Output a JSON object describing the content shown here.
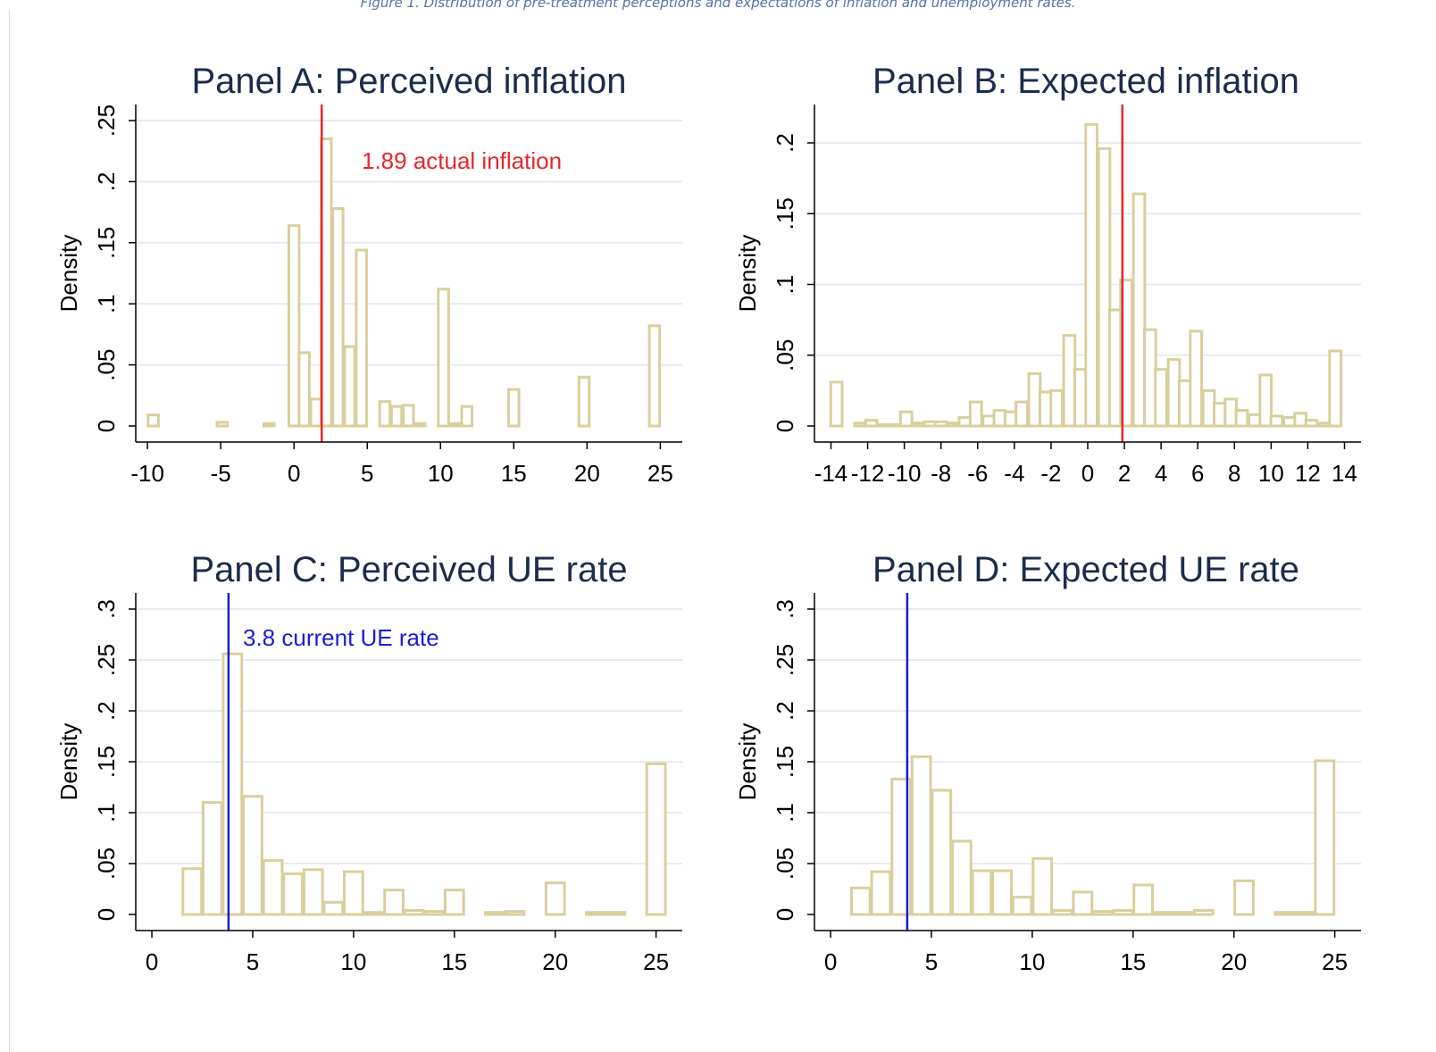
{
  "caption": "Figure 1. Distribution of pre-treatment perceptions and expectations of inflation and unemployment rates.",
  "colors": {
    "bar_outline": "#d9cf9c",
    "grid": "#e4ecee",
    "title": "#1c2c4c",
    "inflation_line": "#e8262a",
    "ue_line": "#1b1bd6"
  },
  "chart_data": [
    {
      "type": "bar",
      "title": "Panel A: Perceived inflation",
      "ylabel": "Density",
      "xlim": [
        -10.8,
        26.5
      ],
      "ylim": [
        0,
        0.25
      ],
      "xticks": [
        -10,
        -5,
        0,
        5,
        10,
        15,
        20,
        25
      ],
      "xtick_labels": [
        "-10",
        "-5",
        "0",
        "5",
        "10",
        "15",
        "20",
        "25"
      ],
      "yticks": [
        0,
        0.05,
        0.1,
        0.15,
        0.2,
        0.25
      ],
      "ytick_labels": [
        "0",
        ".05",
        ".1",
        ".15",
        ".2",
        ".25"
      ],
      "bin_width": 0.7,
      "bins": [
        {
          "x": -9.6,
          "y": 0.009
        },
        {
          "x": -4.9,
          "y": 0.003
        },
        {
          "x": -1.7,
          "y": 0.002
        },
        {
          "x": -0.0,
          "y": 0.164
        },
        {
          "x": 0.7,
          "y": 0.06
        },
        {
          "x": 1.5,
          "y": 0.022
        },
        {
          "x": 2.2,
          "y": 0.235
        },
        {
          "x": 3.0,
          "y": 0.178
        },
        {
          "x": 3.8,
          "y": 0.065
        },
        {
          "x": 4.6,
          "y": 0.144
        },
        {
          "x": 6.2,
          "y": 0.02
        },
        {
          "x": 7.0,
          "y": 0.016
        },
        {
          "x": 7.8,
          "y": 0.017
        },
        {
          "x": 8.6,
          "y": 0.002
        },
        {
          "x": 10.2,
          "y": 0.112
        },
        {
          "x": 11.0,
          "y": 0.002
        },
        {
          "x": 11.8,
          "y": 0.016
        },
        {
          "x": 15.0,
          "y": 0.03
        },
        {
          "x": 19.8,
          "y": 0.04
        },
        {
          "x": 24.6,
          "y": 0.082
        }
      ],
      "reference_line": {
        "x": 1.89,
        "color": "#e8262a",
        "label": "1.89 actual inflation"
      }
    },
    {
      "type": "bar",
      "title": "Panel B: Expected inflation",
      "ylabel": "Density",
      "xlim": [
        -14.9,
        14.9
      ],
      "ylim": [
        0,
        0.215
      ],
      "xticks": [
        -14,
        -12,
        -10,
        -8,
        -6,
        -4,
        -2,
        0,
        2,
        4,
        6,
        8,
        10,
        12,
        14
      ],
      "xtick_labels": [
        "-14",
        "-12",
        "-10",
        "-8",
        "-6",
        "-4",
        "-2",
        "0",
        "2",
        "4",
        "6",
        "8",
        "10",
        "12",
        "14"
      ],
      "yticks": [
        0,
        0.05,
        0.1,
        0.15,
        0.2
      ],
      "ytick_labels": [
        "0",
        ".05",
        ".1",
        ".15",
        ".2"
      ],
      "bin_width": 0.62,
      "bins": [
        {
          "x": -13.7,
          "y": 0.031
        },
        {
          "x": -12.4,
          "y": 0.002
        },
        {
          "x": -11.8,
          "y": 0.004
        },
        {
          "x": -11.1,
          "y": 0.001
        },
        {
          "x": -10.5,
          "y": 0.001
        },
        {
          "x": -9.9,
          "y": 0.01
        },
        {
          "x": -9.2,
          "y": 0.002
        },
        {
          "x": -8.6,
          "y": 0.003
        },
        {
          "x": -8.0,
          "y": 0.003
        },
        {
          "x": -7.3,
          "y": 0.002
        },
        {
          "x": -6.7,
          "y": 0.006
        },
        {
          "x": -6.1,
          "y": 0.017
        },
        {
          "x": -5.4,
          "y": 0.007
        },
        {
          "x": -4.8,
          "y": 0.011
        },
        {
          "x": -4.2,
          "y": 0.01
        },
        {
          "x": -3.6,
          "y": 0.017
        },
        {
          "x": -2.9,
          "y": 0.037
        },
        {
          "x": -2.3,
          "y": 0.024
        },
        {
          "x": -1.7,
          "y": 0.025
        },
        {
          "x": -1.0,
          "y": 0.064
        },
        {
          "x": -0.4,
          "y": 0.04
        },
        {
          "x": 0.2,
          "y": 0.213
        },
        {
          "x": 0.9,
          "y": 0.196
        },
        {
          "x": 1.5,
          "y": 0.082
        },
        {
          "x": 2.1,
          "y": 0.103
        },
        {
          "x": 2.8,
          "y": 0.164
        },
        {
          "x": 3.4,
          "y": 0.068
        },
        {
          "x": 4.0,
          "y": 0.04
        },
        {
          "x": 4.7,
          "y": 0.047
        },
        {
          "x": 5.3,
          "y": 0.032
        },
        {
          "x": 5.9,
          "y": 0.067
        },
        {
          "x": 6.6,
          "y": 0.025
        },
        {
          "x": 7.2,
          "y": 0.016
        },
        {
          "x": 7.8,
          "y": 0.019
        },
        {
          "x": 8.4,
          "y": 0.011
        },
        {
          "x": 9.1,
          "y": 0.008
        },
        {
          "x": 9.7,
          "y": 0.036
        },
        {
          "x": 10.3,
          "y": 0.007
        },
        {
          "x": 11.0,
          "y": 0.006
        },
        {
          "x": 11.6,
          "y": 0.009
        },
        {
          "x": 12.2,
          "y": 0.004
        },
        {
          "x": 12.9,
          "y": 0.002
        },
        {
          "x": 13.5,
          "y": 0.053
        }
      ],
      "reference_line": {
        "x": 1.89,
        "color": "#e8262a",
        "label": ""
      }
    },
    {
      "type": "bar",
      "title": "Panel C: Perceived UE rate",
      "ylabel": "Density",
      "xlim": [
        -0.8,
        26.3
      ],
      "ylim": [
        0,
        0.3
      ],
      "xticks": [
        0,
        5,
        10,
        15,
        20,
        25
      ],
      "xtick_labels": [
        "0",
        "5",
        "10",
        "15",
        "20",
        "25"
      ],
      "yticks": [
        0,
        0.05,
        0.1,
        0.15,
        0.2,
        0.25,
        0.3
      ],
      "ytick_labels": [
        "0",
        ".05",
        ".1",
        ".15",
        ".2",
        ".25",
        ".3"
      ],
      "bin_width": 0.92,
      "bins": [
        {
          "x": 2.0,
          "y": 0.045
        },
        {
          "x": 3.0,
          "y": 0.11
        },
        {
          "x": 4.0,
          "y": 0.256
        },
        {
          "x": 5.0,
          "y": 0.116
        },
        {
          "x": 6.0,
          "y": 0.053
        },
        {
          "x": 7.0,
          "y": 0.04
        },
        {
          "x": 8.0,
          "y": 0.044
        },
        {
          "x": 9.0,
          "y": 0.012
        },
        {
          "x": 10.0,
          "y": 0.042
        },
        {
          "x": 11.0,
          "y": 0.002
        },
        {
          "x": 12.0,
          "y": 0.024
        },
        {
          "x": 13.0,
          "y": 0.004
        },
        {
          "x": 14.0,
          "y": 0.003
        },
        {
          "x": 15.0,
          "y": 0.024
        },
        {
          "x": 17.0,
          "y": 0.002
        },
        {
          "x": 18.0,
          "y": 0.003
        },
        {
          "x": 20.0,
          "y": 0.031
        },
        {
          "x": 22.0,
          "y": 0.002
        },
        {
          "x": 23.0,
          "y": 0.002
        },
        {
          "x": 25.0,
          "y": 0.148
        }
      ],
      "reference_line": {
        "x": 3.8,
        "color": "#1b1bd6",
        "label": "3.8 current UE rate"
      }
    },
    {
      "type": "bar",
      "title": "Panel D: Expected UE rate",
      "ylabel": "Density",
      "xlim": [
        -0.8,
        26.3
      ],
      "ylim": [
        0,
        0.3
      ],
      "xticks": [
        0,
        5,
        10,
        15,
        20,
        25
      ],
      "xtick_labels": [
        "0",
        "5",
        "10",
        "15",
        "20",
        "25"
      ],
      "yticks": [
        0,
        0.05,
        0.1,
        0.15,
        0.2,
        0.25,
        0.3
      ],
      "ytick_labels": [
        "0",
        ".05",
        ".1",
        ".15",
        ".2",
        ".25",
        ".3"
      ],
      "bin_width": 0.92,
      "bins": [
        {
          "x": 1.5,
          "y": 0.026
        },
        {
          "x": 2.5,
          "y": 0.042
        },
        {
          "x": 3.5,
          "y": 0.133
        },
        {
          "x": 4.5,
          "y": 0.155
        },
        {
          "x": 5.5,
          "y": 0.122
        },
        {
          "x": 6.5,
          "y": 0.072
        },
        {
          "x": 7.5,
          "y": 0.043
        },
        {
          "x": 8.5,
          "y": 0.043
        },
        {
          "x": 9.5,
          "y": 0.017
        },
        {
          "x": 10.5,
          "y": 0.055
        },
        {
          "x": 11.5,
          "y": 0.004
        },
        {
          "x": 12.5,
          "y": 0.022
        },
        {
          "x": 13.5,
          "y": 0.003
        },
        {
          "x": 14.5,
          "y": 0.004
        },
        {
          "x": 15.5,
          "y": 0.029
        },
        {
          "x": 16.5,
          "y": 0.002
        },
        {
          "x": 17.5,
          "y": 0.002
        },
        {
          "x": 18.5,
          "y": 0.004
        },
        {
          "x": 20.5,
          "y": 0.033
        },
        {
          "x": 22.5,
          "y": 0.002
        },
        {
          "x": 23.5,
          "y": 0.002
        },
        {
          "x": 24.5,
          "y": 0.151
        }
      ],
      "reference_line": {
        "x": 3.8,
        "color": "#1b1bd6",
        "label": ""
      }
    }
  ]
}
